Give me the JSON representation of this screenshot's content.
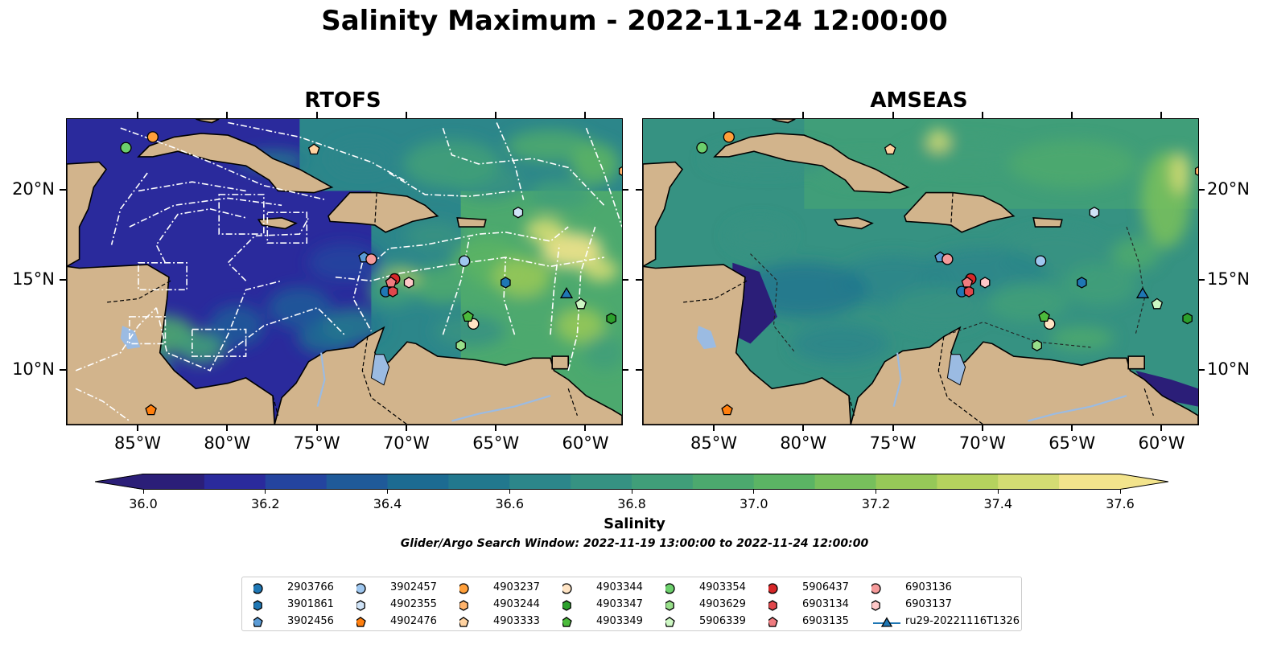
{
  "title": "Salinity Maximum - 2022-11-24 12:00:00",
  "panels": [
    {
      "title": "RTOFS",
      "id": "rtofs"
    },
    {
      "title": "AMSEAS",
      "id": "amseas"
    }
  ],
  "map": {
    "lon_range": [
      -89,
      -58
    ],
    "lat_range": [
      7,
      24
    ],
    "lon_ticks": [
      -85,
      -80,
      -75,
      -70,
      -65,
      -60
    ],
    "lon_tick_labels": [
      "85°W",
      "80°W",
      "75°W",
      "70°W",
      "65°W",
      "60°W"
    ],
    "lat_ticks": [
      10,
      15,
      20
    ],
    "lat_tick_labels": [
      "10°N",
      "15°N",
      "20°N"
    ],
    "land_color": "#d2b48c",
    "water_color": "#9bbbe2"
  },
  "colorbar": {
    "label": "Salinity",
    "min": 36.0,
    "max": 37.6,
    "ticks": [
      36.0,
      36.2,
      36.4,
      36.6,
      36.8,
      37.0,
      37.2,
      37.4,
      37.6
    ],
    "tick_labels": [
      "36.0",
      "36.2",
      "36.4",
      "36.6",
      "36.8",
      "37.0",
      "37.2",
      "37.4",
      "37.6"
    ],
    "colors": [
      "#2b1e78",
      "#2a2a9c",
      "#24449f",
      "#1f5a99",
      "#1c6b92",
      "#22788e",
      "#2c868a",
      "#369282",
      "#409e79",
      "#4ca96e",
      "#5bb464",
      "#77bf5c",
      "#96c858",
      "#b5d25e",
      "#d4dc73",
      "#f3e48c"
    ]
  },
  "search_window": "Glider/Argo Search Window: 2022-11-19 13:00:00 to 2022-11-24 12:00:00",
  "floats": [
    {
      "id": "2903766",
      "marker": "circle",
      "color": "#1f77b4",
      "lon": -71.2,
      "lat": 14.4
    },
    {
      "id": "3901861",
      "marker": "hexagon",
      "color": "#1f77b4",
      "lon": -64.5,
      "lat": 14.9
    },
    {
      "id": "3902456",
      "marker": "pentagon",
      "color": "#5b9bd5",
      "lon": -72.4,
      "lat": 16.3
    },
    {
      "id": "3902457",
      "marker": "circle",
      "color": "#9fc7ef",
      "lon": -66.8,
      "lat": 16.1
    },
    {
      "id": "4902355",
      "marker": "hexagon",
      "color": "#cfe3f7",
      "lon": -63.8,
      "lat": 18.8
    },
    {
      "id": "4902476",
      "marker": "pentagon",
      "color": "#ff7f0e",
      "lon": -84.3,
      "lat": 7.8
    },
    {
      "id": "4903237",
      "marker": "circle",
      "color": "#ff9f3a",
      "lon": -84.2,
      "lat": 23.0
    },
    {
      "id": "4903244",
      "marker": "hexagon",
      "color": "#ffb36b",
      "lon": -57.9,
      "lat": 21.1
    },
    {
      "id": "4903333",
      "marker": "pentagon",
      "color": "#ffd2a0",
      "lon": -75.2,
      "lat": 22.3
    },
    {
      "id": "4903344",
      "marker": "circle",
      "color": "#ffe4c4",
      "lon": -66.3,
      "lat": 12.6
    },
    {
      "id": "4903347",
      "marker": "hexagon",
      "color": "#2ca02c",
      "lon": -58.6,
      "lat": 12.9
    },
    {
      "id": "4903349",
      "marker": "pentagon",
      "color": "#4cbb3c",
      "lon": -66.6,
      "lat": 13.0
    },
    {
      "id": "4903354",
      "marker": "circle",
      "color": "#6ccf6c",
      "lon": -85.7,
      "lat": 22.4
    },
    {
      "id": "4903629",
      "marker": "hexagon",
      "color": "#98df8a",
      "lon": -67.0,
      "lat": 11.4
    },
    {
      "id": "5906339",
      "marker": "pentagon",
      "color": "#cdf7c3",
      "lon": -60.3,
      "lat": 13.7
    },
    {
      "id": "5906437",
      "marker": "circle",
      "color": "#d62728",
      "lon": -70.7,
      "lat": 15.1
    },
    {
      "id": "6903134",
      "marker": "hexagon",
      "color": "#e0474c",
      "lon": -70.8,
      "lat": 14.4
    },
    {
      "id": "6903135",
      "marker": "pentagon",
      "color": "#ef7b7f",
      "lon": -70.9,
      "lat": 14.9
    },
    {
      "id": "6903136",
      "marker": "circle",
      "color": "#f59a9a",
      "lon": -72.0,
      "lat": 16.2
    },
    {
      "id": "6903137",
      "marker": "hexagon",
      "color": "#ffc8c8",
      "lon": -69.9,
      "lat": 14.9
    }
  ],
  "glider": {
    "id": "ru29-20221116T1326",
    "marker": "triangle",
    "color": "#1f77b4",
    "lon": -61.1,
    "lat": 14.3
  }
}
